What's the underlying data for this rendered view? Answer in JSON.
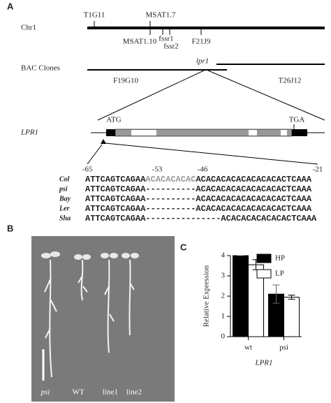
{
  "panel_a": {
    "label": "A",
    "chr_label": "Chr1",
    "markers_above": [
      "T1G11",
      "MSAT1.7"
    ],
    "markers_below": [
      "MSAT1.10",
      "fssr1",
      "fssr2",
      "F21J9"
    ],
    "bac_label": "BAC Clones",
    "locus": "lpr1",
    "clones": [
      "F19G10",
      "T26J12"
    ],
    "gene": "LPR1",
    "start_codon": "ATG",
    "stop_codon": "TGA",
    "positions": [
      "-65",
      "-53",
      "-46",
      "-21"
    ],
    "alignment": [
      {
        "name": "Col",
        "seq": [
          "ATTCAGTCAGAA",
          "ACACACACAC",
          "ACACACACACACACACACTCAAA"
        ]
      },
      {
        "name": "psi",
        "seq": [
          "ATTCAGTCAGAA----------ACACACACACACACACACTCAAA"
        ]
      },
      {
        "name": "Bay",
        "seq": [
          "ATTCAGTCAGAA----------ACACACACACACACACACTCAAA"
        ]
      },
      {
        "name": "Ler",
        "seq": [
          "ATTCAGTCAGAA----------ACACACACACACACACACTCAAA"
        ]
      },
      {
        "name": "Sha",
        "seq": [
          "ATTCAGTCAGAA---------------ACACACACACACACTCAAA"
        ]
      }
    ]
  },
  "panel_b": {
    "label": "B",
    "labels": [
      "psi",
      "WT",
      "line1",
      "line2"
    ]
  },
  "chart_data": {
    "type": "bar",
    "label": "C",
    "categories": [
      "wt",
      "psi"
    ],
    "series": [
      {
        "name": "HP",
        "color": "#000000",
        "values": [
          4.0,
          2.1
        ],
        "errors": [
          0,
          0.45
        ]
      },
      {
        "name": "LP",
        "color": "#ffffff",
        "values": [
          3.55,
          1.95
        ],
        "errors": [
          0.25,
          0.1
        ]
      }
    ],
    "ylim": [
      0,
      4
    ],
    "yticks": [
      0,
      1,
      2,
      3,
      4
    ],
    "y_label": "Relative Expression",
    "x_label": "LPR1"
  }
}
